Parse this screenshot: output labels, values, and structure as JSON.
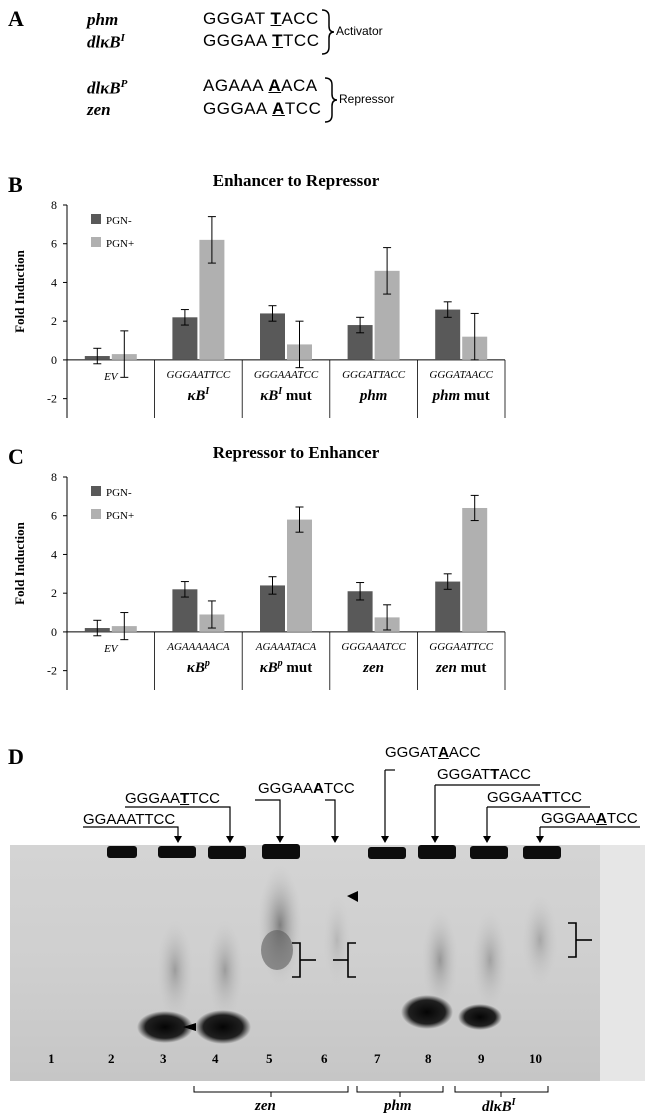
{
  "panelA": {
    "label": "A",
    "rows": [
      {
        "gene": "phm",
        "sup": "",
        "pre": "GGGAT ",
        "mut": "T",
        "post": "ACC"
      },
      {
        "gene": "dlκB",
        "sup": "I",
        "pre": "GGGAA ",
        "mut": "T",
        "post": "TCC"
      },
      {
        "gene": "dlκB",
        "sup": "P",
        "pre": "AGAAA ",
        "mut": "A",
        "post": "ACA"
      },
      {
        "gene": "zen",
        "sup": "",
        "pre": "GGGAA ",
        "mut": "A",
        "post": "TCC"
      }
    ],
    "activator_label": "Activator",
    "repressor_label": "Repressor"
  },
  "chart_data": [
    {
      "type": "bar",
      "panel": "B",
      "title": "Enhancer to Repressor",
      "ylabel": "Fold  Induction",
      "ylim": [
        -3,
        8
      ],
      "yticks": [
        -2,
        0,
        2,
        4,
        6,
        8
      ],
      "legend": "top-left",
      "categories": [
        {
          "seq": "",
          "name": "EV",
          "sup": "",
          "suffix": ""
        },
        {
          "seq": "GGGAATTCC",
          "name": "κB",
          "sup": "I",
          "suffix": ""
        },
        {
          "seq": "GGGAAATCC",
          "name": "κB",
          "sup": "I",
          "suffix": " mut"
        },
        {
          "seq": "GGGATTACC",
          "name": "phm",
          "sup": "",
          "suffix": ""
        },
        {
          "seq": "GGGATAACC",
          "name": "phm",
          "sup": "",
          "suffix": " mut"
        }
      ],
      "series": [
        {
          "name": "PGN-",
          "color": "#595959",
          "values": [
            0.2,
            2.2,
            2.4,
            1.8,
            2.6
          ],
          "errors": [
            0.4,
            0.4,
            0.4,
            0.4,
            0.4
          ]
        },
        {
          "name": "PGN+",
          "color": "#b0b0b0",
          "values": [
            0.3,
            6.2,
            0.8,
            4.6,
            1.2
          ],
          "errors": [
            1.2,
            1.2,
            1.2,
            1.2,
            1.2
          ]
        }
      ]
    },
    {
      "type": "bar",
      "panel": "C",
      "title": "Repressor to Enhancer",
      "ylabel": "Fold  Induction",
      "ylim": [
        -3,
        8
      ],
      "yticks": [
        -2,
        0,
        2,
        4,
        6,
        8
      ],
      "legend": "top-left",
      "categories": [
        {
          "seq": "",
          "name": "EV",
          "sup": "",
          "suffix": ""
        },
        {
          "seq": "AGAAAAACA",
          "name": "κB",
          "sup": "p",
          "suffix": ""
        },
        {
          "seq": "AGAAATACA",
          "name": "κB",
          "sup": "p",
          "suffix": " mut"
        },
        {
          "seq": "GGGAAATCC",
          "name": "zen",
          "sup": "",
          "suffix": ""
        },
        {
          "seq": "GGGAATTCC",
          "name": "zen",
          "sup": "",
          "suffix": " mut"
        }
      ],
      "series": [
        {
          "name": "PGN-",
          "color": "#595959",
          "values": [
            0.2,
            2.2,
            2.4,
            2.1,
            2.6
          ],
          "errors": [
            0.4,
            0.4,
            0.45,
            0.45,
            0.4
          ]
        },
        {
          "name": "PGN+",
          "color": "#b0b0b0",
          "values": [
            0.3,
            0.9,
            5.8,
            0.75,
            6.4
          ],
          "errors": [
            0.7,
            0.7,
            0.65,
            0.65,
            0.65
          ]
        }
      ]
    }
  ],
  "panelD": {
    "label": "D",
    "probes": [
      {
        "pre": "GGAAATTCC",
        "mut": "",
        "post": ""
      },
      {
        "pre": "GGGAA",
        "mut": "T",
        "post": "TCC"
      },
      {
        "pre": "GGGAA",
        "mut": "A",
        "post": "TCC"
      },
      {
        "pre": "GGGAT",
        "mut": "A",
        "post": "ACC"
      },
      {
        "pre": "GGGAT",
        "mut": "T",
        "post": "ACC"
      },
      {
        "pre": "GGGAA",
        "mut": "T",
        "post": "TCC"
      },
      {
        "pre": "GGGAA",
        "mut": "A",
        "post": "TCC"
      }
    ],
    "lanes": [
      "1",
      "2",
      "3",
      "4",
      "5",
      "6",
      "7",
      "8",
      "9",
      "10"
    ],
    "groups": [
      {
        "name": "zen",
        "sup": ""
      },
      {
        "name": "phm",
        "sup": ""
      },
      {
        "name": "dlκB",
        "sup": "I"
      }
    ]
  }
}
